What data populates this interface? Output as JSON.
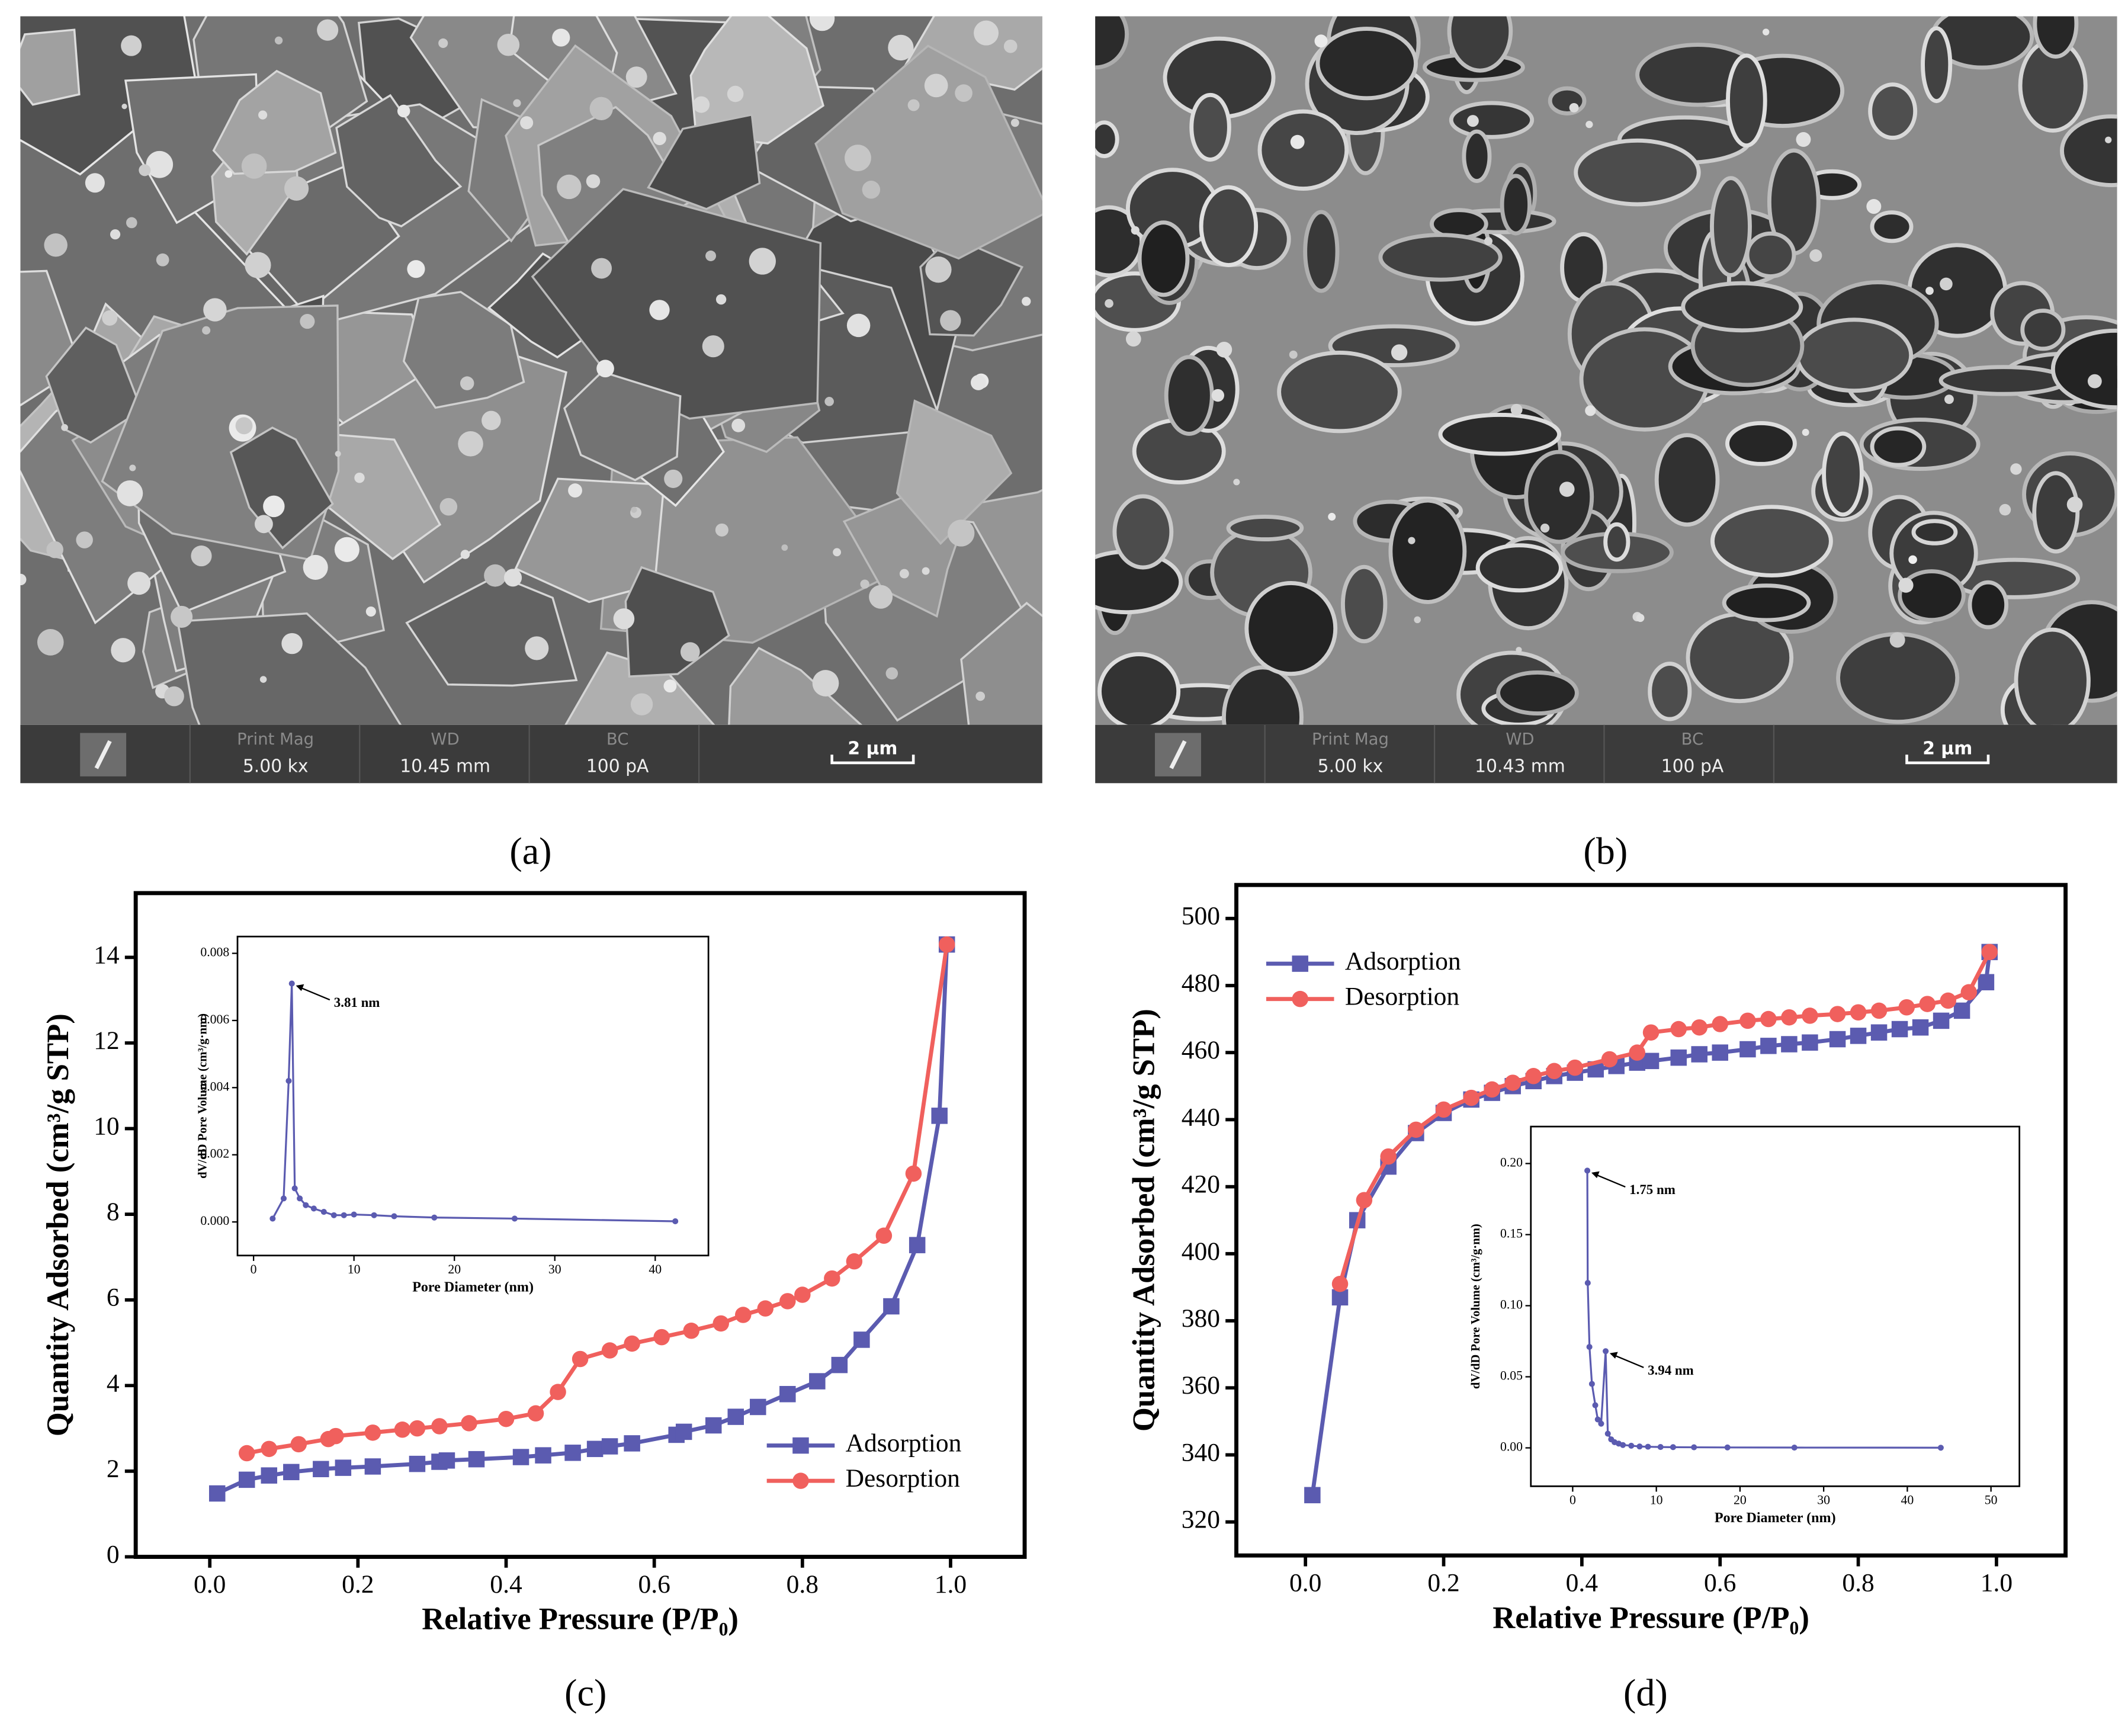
{
  "images": [
    {
      "label": "(a)",
      "info": {
        "print_mag_label": "Print Mag",
        "print_mag": "5.00 kx",
        "wd_label": "WD",
        "wd": "10.45 mm",
        "bc_label": "BC",
        "bc": "100 pA",
        "scale_bar": "2 μm"
      }
    },
    {
      "label": "(b)",
      "info": {
        "print_mag_label": "Print Mag",
        "print_mag": "5.00 kx",
        "wd_label": "WD",
        "wd": "10.43 mm",
        "bc_label": "BC",
        "bc": "100 pA",
        "scale_bar": "2 μm"
      }
    }
  ],
  "chart_data": [
    {
      "type": "line",
      "panel_label": "(c)",
      "x_label": "Relative Pressure (P/P₀)",
      "y_label": "Quantity Adsorbed (cm³/g STP)",
      "xlim": [
        -0.1,
        1.1
      ],
      "xticks": [
        {
          "value": 0,
          "label": "0.0"
        },
        0.2,
        0.4,
        0.6,
        0.8,
        {
          "value": 1,
          "label": "1.0"
        }
      ],
      "ylim": [
        0,
        15.5
      ],
      "yticks": [
        0,
        2,
        4,
        6,
        8,
        10,
        12,
        14
      ],
      "legend": "lower right",
      "series": [
        {
          "name": "Adsorption",
          "color": "#5b5bb0",
          "marker": "square",
          "x": [
            0.01,
            0.05,
            0.08,
            0.11,
            0.15,
            0.18,
            0.22,
            0.28,
            0.31,
            0.32,
            0.36,
            0.42,
            0.45,
            0.49,
            0.52,
            0.54,
            0.57,
            0.63,
            0.64,
            0.68,
            0.71,
            0.74,
            0.78,
            0.82,
            0.85,
            0.88,
            0.92,
            0.955,
            0.985,
            0.995
          ],
          "values": [
            1.48,
            1.8,
            1.9,
            1.98,
            2.05,
            2.08,
            2.11,
            2.17,
            2.22,
            2.25,
            2.28,
            2.33,
            2.37,
            2.43,
            2.52,
            2.58,
            2.65,
            2.85,
            2.92,
            3.07,
            3.27,
            3.5,
            3.8,
            4.1,
            4.48,
            5.07,
            5.85,
            7.28,
            10.3,
            14.3
          ]
        },
        {
          "name": "Desorption",
          "color": "#f0605d",
          "marker": "circle",
          "x": [
            0.05,
            0.08,
            0.12,
            0.16,
            0.17,
            0.22,
            0.26,
            0.28,
            0.31,
            0.35,
            0.4,
            0.44,
            0.47,
            0.5,
            0.54,
            0.57,
            0.61,
            0.65,
            0.69,
            0.72,
            0.75,
            0.78,
            0.8,
            0.84,
            0.87,
            0.91,
            0.95,
            0.995
          ],
          "values": [
            2.42,
            2.52,
            2.63,
            2.75,
            2.82,
            2.9,
            2.97,
            3.0,
            3.05,
            3.12,
            3.22,
            3.35,
            3.85,
            4.62,
            4.82,
            4.98,
            5.13,
            5.28,
            5.45,
            5.65,
            5.8,
            5.97,
            6.12,
            6.5,
            6.9,
            7.5,
            8.95,
            14.3
          ]
        }
      ]
    },
    {
      "type": "line",
      "x_label": "Pore Diameter (nm)",
      "y_label": "dV/dD Pore Volume (cm³/g·nm)",
      "xlim": [
        -1.6,
        45.3
      ],
      "xticks": [
        0,
        10,
        20,
        30,
        40
      ],
      "ylim": [
        -0.001,
        0.0085
      ],
      "yticks": [
        {
          "value": 0,
          "label": "0.000"
        },
        {
          "value": 0.002,
          "label": "0.002"
        },
        {
          "value": 0.004,
          "label": "0.004"
        },
        {
          "value": 0.006,
          "label": "0.006"
        },
        {
          "value": 0.008,
          "label": "0.008"
        }
      ],
      "annotations": [
        "3.81 nm"
      ],
      "series": [
        {
          "color": "#5b5bb0",
          "marker": "circle",
          "x": [
            1.9,
            3.0,
            3.5,
            3.81,
            4.1,
            4.6,
            5.2,
            6,
            7,
            8,
            9,
            10,
            12,
            14,
            18,
            26,
            42
          ],
          "values": [
            0.0001,
            0.0007,
            0.0042,
            0.0071,
            0.001,
            0.0007,
            0.0005,
            0.0004,
            0.0003,
            0.0002,
            0.0002,
            0.00022,
            0.0002,
            0.00017,
            0.00013,
            0.0001,
            2e-05
          ]
        }
      ]
    },
    {
      "type": "line",
      "panel_label": "(d)",
      "x_label": "Relative Pressure (P/P₀)",
      "y_label": "Quantity Adsorbed (cm³/g STP)",
      "xlim": [
        -0.1,
        1.1
      ],
      "xticks": [
        {
          "value": 0,
          "label": "0.0"
        },
        0.2,
        0.4,
        0.6,
        0.8,
        {
          "value": 1,
          "label": "1.0"
        }
      ],
      "ylim": [
        310,
        510
      ],
      "yticks": [
        320,
        340,
        360,
        380,
        400,
        420,
        440,
        460,
        480,
        500
      ],
      "legend": "upper left",
      "series": [
        {
          "name": "Adsorption",
          "color": "#5b5bb0",
          "marker": "square",
          "x": [
            0.01,
            0.05,
            0.075,
            0.12,
            0.16,
            0.2,
            0.24,
            0.27,
            0.3,
            0.33,
            0.36,
            0.39,
            0.42,
            0.45,
            0.48,
            0.5,
            0.54,
            0.57,
            0.6,
            0.64,
            0.67,
            0.7,
            0.73,
            0.77,
            0.8,
            0.83,
            0.86,
            0.89,
            0.92,
            0.95,
            0.985,
            0.99
          ],
          "values": [
            328,
            387,
            410,
            426,
            436,
            442,
            446,
            448,
            450,
            451.5,
            453,
            454,
            455,
            456,
            457,
            457.5,
            458.5,
            459.5,
            460,
            461,
            462,
            462.5,
            463,
            464,
            465,
            466,
            467,
            467.5,
            469.5,
            472.5,
            481,
            490
          ]
        },
        {
          "name": "Desorption",
          "color": "#f0605d",
          "marker": "circle",
          "x": [
            0.05,
            0.085,
            0.12,
            0.16,
            0.2,
            0.24,
            0.27,
            0.3,
            0.33,
            0.36,
            0.39,
            0.44,
            0.48,
            0.5,
            0.54,
            0.57,
            0.6,
            0.64,
            0.67,
            0.7,
            0.73,
            0.77,
            0.8,
            0.83,
            0.87,
            0.9,
            0.93,
            0.96,
            0.99
          ],
          "values": [
            391,
            416,
            429,
            437,
            443,
            446.5,
            449,
            451,
            453,
            454.5,
            455.5,
            458,
            460,
            466,
            467,
            467.5,
            468.5,
            469.5,
            470,
            470.5,
            471,
            471.5,
            472,
            472.5,
            473.5,
            474.5,
            475.5,
            478,
            490
          ]
        }
      ]
    },
    {
      "type": "line",
      "x_label": "Pore Diameter (nm)",
      "y_label": "dV/dD Pore Volume (cm³/g·nm)",
      "xlim": [
        -5,
        53.4
      ],
      "xticks": [
        0,
        10,
        20,
        30,
        40,
        50
      ],
      "ylim": [
        -0.027,
        0.226
      ],
      "yticks": [
        {
          "value": 0,
          "label": "0.00"
        },
        {
          "value": 0.05,
          "label": "0.05"
        },
        {
          "value": 0.1,
          "label": "0.10"
        },
        {
          "value": 0.15,
          "label": "0.15"
        },
        {
          "value": 0.2,
          "label": "0.20"
        }
      ],
      "annotations": [
        "1.75 nm",
        "3.94 nm"
      ],
      "series": [
        {
          "color": "#5b5bb0",
          "marker": "circle",
          "x": [
            1.75,
            1.8,
            2.0,
            2.3,
            2.7,
            3.0,
            3.4,
            3.94,
            4.2,
            4.6,
            5,
            5.5,
            6,
            7,
            8,
            9,
            10.5,
            12,
            14.5,
            18.5,
            26.5,
            44
          ],
          "values": [
            0.195,
            0.116,
            0.071,
            0.045,
            0.03,
            0.02,
            0.017,
            0.068,
            0.01,
            0.006,
            0.004,
            0.003,
            0.002,
            0.0015,
            0.001,
            0.0008,
            0.0006,
            0.0005,
            0.0004,
            0.0003,
            0.0002,
            0.0001
          ]
        }
      ]
    }
  ]
}
